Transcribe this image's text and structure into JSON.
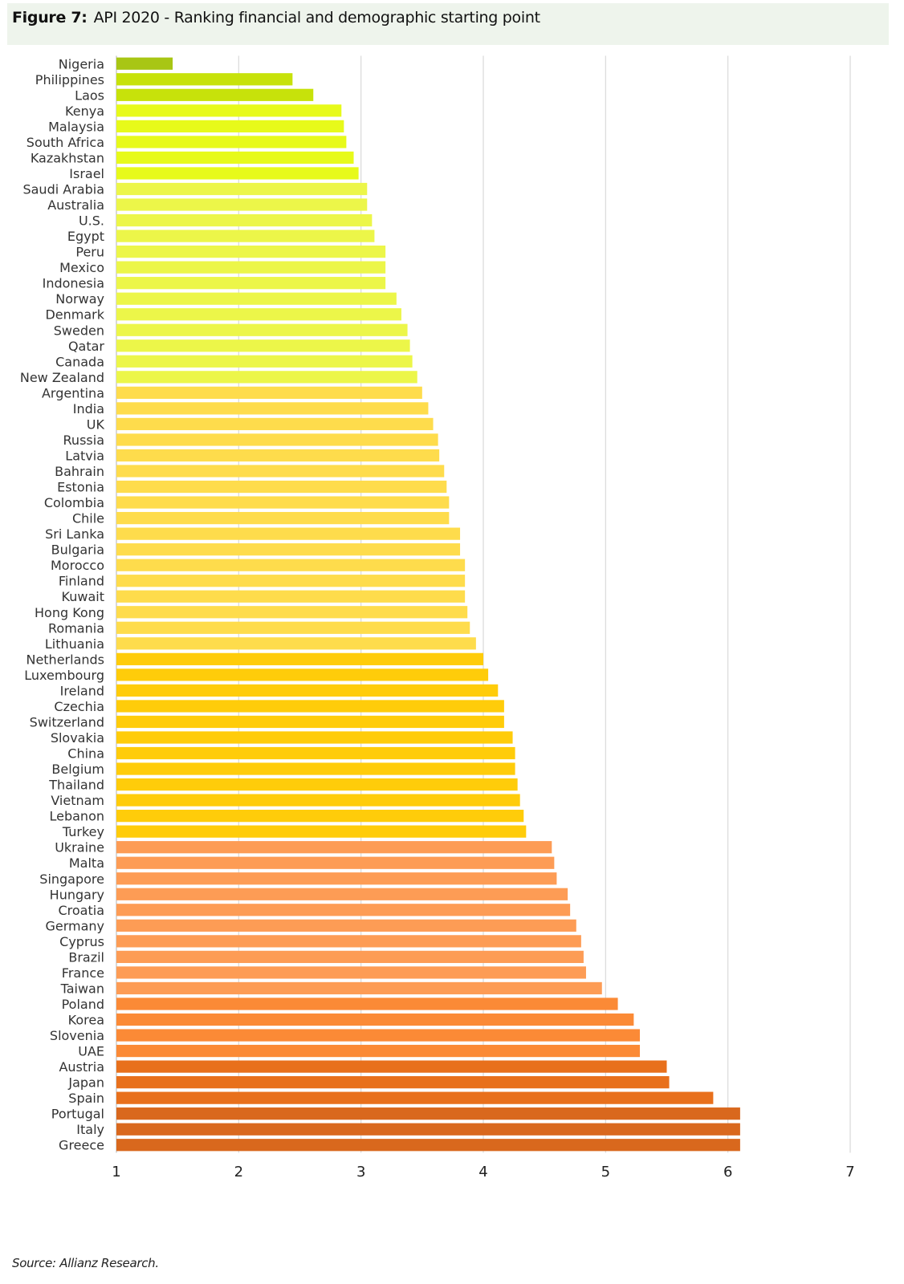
{
  "figure": {
    "label": "Figure 7:",
    "title": "API 2020 - Ranking financial and demographic starting point"
  },
  "source": "Source: Allianz Research.",
  "colors": {
    "olive_green": "#a8c614",
    "lime": "#c7e20a",
    "yellow_green": "#e7fa1a",
    "light_yellow_green": "#ecf649",
    "light_gold": "#fedc4c",
    "gold": "#ffcc0a",
    "light_orange": "#fd9c55",
    "orange": "#fb8a36",
    "dark_orange": "#e8701c",
    "burnt_orange": "#d9681d",
    "grid": "#d9d9d9"
  },
  "chart_data": {
    "type": "bar",
    "orientation": "horizontal",
    "xlim": [
      1,
      7
    ],
    "xticks": [
      "1",
      "2",
      "3",
      "4",
      "5",
      "6",
      "7"
    ],
    "grid": "vertical",
    "categories": [
      "Nigeria",
      "Philippines",
      "Laos",
      "Kenya",
      "Malaysia",
      "South Africa",
      "Kazakhstan",
      "Israel",
      "Saudi Arabia",
      "Australia",
      "U.S.",
      "Egypt",
      "Peru",
      "Mexico",
      "Indonesia",
      "Norway",
      "Denmark",
      "Sweden",
      "Qatar",
      "Canada",
      "New Zealand",
      "Argentina",
      "India",
      "UK",
      "Russia",
      "Latvia",
      "Bahrain",
      "Estonia",
      "Colombia",
      "Chile",
      "Sri Lanka",
      "Bulgaria",
      "Morocco",
      "Finland",
      "Kuwait",
      "Hong Kong",
      "Romania",
      "Lithuania",
      "Netherlands",
      "Luxembourg",
      "Ireland",
      "Czechia",
      "Switzerland",
      "Slovakia",
      "China",
      "Belgium",
      "Thailand",
      "Vietnam",
      "Lebanon",
      "Turkey",
      "Ukraine",
      "Malta",
      "Singapore",
      "Hungary",
      "Croatia",
      "Germany",
      "Cyprus",
      "Brazil",
      "France",
      "Taiwan",
      "Poland",
      "Korea",
      "Slovenia",
      "UAE",
      "Austria",
      "Japan",
      "Spain",
      "Portugal",
      "Italy",
      "Greece"
    ],
    "values": [
      1.46,
      2.44,
      2.61,
      2.84,
      2.86,
      2.88,
      2.94,
      2.98,
      3.05,
      3.05,
      3.09,
      3.11,
      3.2,
      3.2,
      3.2,
      3.29,
      3.33,
      3.38,
      3.4,
      3.42,
      3.46,
      3.5,
      3.55,
      3.59,
      3.63,
      3.64,
      3.68,
      3.7,
      3.72,
      3.72,
      3.81,
      3.81,
      3.85,
      3.85,
      3.85,
      3.87,
      3.89,
      3.94,
      4.0,
      4.04,
      4.12,
      4.17,
      4.17,
      4.24,
      4.26,
      4.26,
      4.28,
      4.3,
      4.33,
      4.35,
      4.56,
      4.58,
      4.6,
      4.69,
      4.71,
      4.76,
      4.8,
      4.82,
      4.84,
      4.97,
      5.1,
      5.23,
      5.28,
      5.28,
      5.5,
      5.52,
      5.88,
      6.1,
      6.1,
      6.1
    ],
    "bar_colors": [
      "#a8c614",
      "#c7e20a",
      "#c7e20a",
      "#e7fa1a",
      "#e7fa1a",
      "#e7fa1a",
      "#e7fa1a",
      "#e7fa1a",
      "#ecf649",
      "#ecf649",
      "#ecf649",
      "#ecf649",
      "#ecf649",
      "#ecf649",
      "#ecf649",
      "#ecf649",
      "#ecf649",
      "#ecf649",
      "#ecf649",
      "#ecf649",
      "#ecf649",
      "#fedc4c",
      "#fedc4c",
      "#fedc4c",
      "#fedc4c",
      "#fedc4c",
      "#fedc4c",
      "#fedc4c",
      "#fedc4c",
      "#fedc4c",
      "#fedc4c",
      "#fedc4c",
      "#fedc4c",
      "#fedc4c",
      "#fedc4c",
      "#fedc4c",
      "#fedc4c",
      "#fedc4c",
      "#ffcc0a",
      "#ffcc0a",
      "#ffcc0a",
      "#ffcc0a",
      "#ffcc0a",
      "#ffcc0a",
      "#ffcc0a",
      "#ffcc0a",
      "#ffcc0a",
      "#ffcc0a",
      "#ffcc0a",
      "#ffcc0a",
      "#fd9c55",
      "#fd9c55",
      "#fd9c55",
      "#fd9c55",
      "#fd9c55",
      "#fd9c55",
      "#fd9c55",
      "#fd9c55",
      "#fd9c55",
      "#fd9c55",
      "#fb8a36",
      "#fb8a36",
      "#fb8a36",
      "#fb8a36",
      "#e8701c",
      "#e8701c",
      "#e8701c",
      "#d9681d",
      "#d9681d",
      "#d9681d"
    ]
  }
}
